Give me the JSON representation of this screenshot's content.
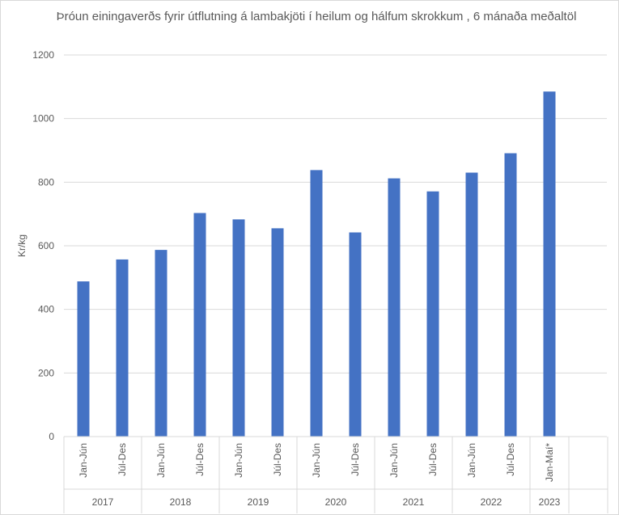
{
  "chart_data": {
    "type": "bar",
    "title": "Þróun einingaverðs fyrir útflutning á lambakjöti í heilum og hálfum skrokkum , 6 mánaða meðaltöl",
    "ylabel": "Kr/kg",
    "xlabel": "",
    "ylim": [
      0,
      1200
    ],
    "yticks": [
      "0",
      "200",
      "400",
      "600",
      "800",
      "1000",
      "1200"
    ],
    "grid": true,
    "legend": "none",
    "bar_color": "#4472c4",
    "groups": [
      {
        "year": "2017",
        "categories": [
          "Jan-Jún",
          "Júl-Des"
        ],
        "values": [
          488,
          557
        ]
      },
      {
        "year": "2018",
        "categories": [
          "Jan-Jún",
          "Júl-Des"
        ],
        "values": [
          587,
          703
        ]
      },
      {
        "year": "2019",
        "categories": [
          "Jan-Jún",
          "Júl-Des"
        ],
        "values": [
          683,
          655
        ]
      },
      {
        "year": "2020",
        "categories": [
          "Jan-Jún",
          "Júl-Des"
        ],
        "values": [
          838,
          642
        ]
      },
      {
        "year": "2021",
        "categories": [
          "Jan-Jún",
          "Júl-Des"
        ],
        "values": [
          812,
          771
        ]
      },
      {
        "year": "2022",
        "categories": [
          "Jan-Jún",
          "Júl-Des"
        ],
        "values": [
          830,
          891
        ]
      },
      {
        "year": "2023",
        "categories": [
          "Jan-Maí*"
        ],
        "values": [
          1085
        ]
      }
    ]
  }
}
